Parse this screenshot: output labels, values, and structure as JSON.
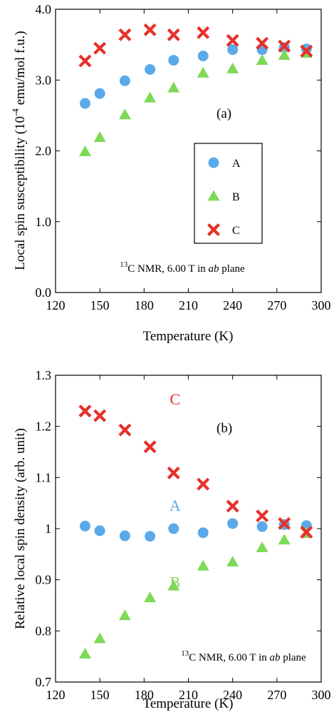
{
  "chart_data": [
    {
      "type": "scatter",
      "panel_label": "(a)",
      "xlabel": "Temperature (K)",
      "ylabel_main": "Local spin susceptibility  (10",
      "ylabel_sup": "-4",
      "ylabel_tail": " emu/mol  f.u.)",
      "xlim": [
        120,
        300
      ],
      "ylim": [
        0.0,
        4.0
      ],
      "xticks": [
        120,
        150,
        180,
        210,
        240,
        270,
        300
      ],
      "yticks": [
        0.0,
        1.0,
        2.0,
        3.0,
        4.0
      ],
      "ytick_labels": [
        "0.0",
        "1.0",
        "2.0",
        "3.0",
        "4.0"
      ],
      "annotation": {
        "sup": "13",
        "pre": "C NMR, 6.00 T in ",
        "italic": "ab",
        "post": " plane"
      },
      "legend": {
        "position": "center-right",
        "entries": [
          "A",
          "B",
          "C"
        ]
      },
      "grid": false,
      "series": [
        {
          "name": "A",
          "marker": "circle",
          "color": "#5aaaea",
          "x": [
            140,
            150,
            167,
            184,
            200,
            220,
            240,
            260,
            275,
            290
          ],
          "y": [
            2.67,
            2.81,
            2.99,
            3.15,
            3.28,
            3.34,
            3.43,
            3.43,
            3.46,
            3.44
          ]
        },
        {
          "name": "B",
          "marker": "triangle",
          "color": "#7ed957",
          "x": [
            140,
            150,
            167,
            184,
            200,
            220,
            240,
            260,
            275,
            290
          ],
          "y": [
            1.99,
            2.19,
            2.51,
            2.75,
            2.89,
            3.1,
            3.16,
            3.28,
            3.35,
            3.38
          ]
        },
        {
          "name": "C",
          "marker": "x",
          "color": "#e8302a",
          "x": [
            140,
            150,
            167,
            184,
            200,
            220,
            240,
            260,
            275,
            290
          ],
          "y": [
            3.27,
            3.45,
            3.64,
            3.71,
            3.64,
            3.67,
            3.56,
            3.52,
            3.48,
            3.41
          ]
        }
      ]
    },
    {
      "type": "scatter",
      "panel_label": "(b)",
      "xlabel": "Temperature (K)",
      "ylabel": "Relative local spin density  (arb. unit)",
      "xlim": [
        120,
        300
      ],
      "ylim": [
        0.7,
        1.3
      ],
      "xticks": [
        120,
        150,
        180,
        210,
        240,
        270,
        300
      ],
      "yticks": [
        0.7,
        0.8,
        0.9,
        1.0,
        1.1,
        1.2,
        1.3
      ],
      "ytick_labels": [
        "0.7",
        "0.8",
        "0.9",
        "1",
        "1.1",
        "1.2",
        "1.3"
      ],
      "annotation": {
        "sup": "13",
        "pre": "C NMR, 6.00 T in ",
        "italic": "ab",
        "post": " plane"
      },
      "series_labels": [
        {
          "name": "C",
          "x": 201,
          "y": 1.243
        },
        {
          "name": "A",
          "x": 201,
          "y": 1.035
        },
        {
          "name": "B",
          "x": 201,
          "y": 0.885
        }
      ],
      "grid": false,
      "series": [
        {
          "name": "A",
          "marker": "circle",
          "color": "#5aaaea",
          "x": [
            140,
            150,
            167,
            184,
            200,
            220,
            240,
            260,
            275,
            290
          ],
          "y": [
            1.005,
            0.996,
            0.986,
            0.985,
            1.0,
            0.992,
            1.01,
            1.004,
            1.008,
            1.006
          ]
        },
        {
          "name": "B",
          "marker": "triangle",
          "color": "#7ed957",
          "x": [
            140,
            150,
            167,
            184,
            200,
            220,
            240,
            260,
            275,
            290
          ],
          "y": [
            0.755,
            0.785,
            0.83,
            0.865,
            0.888,
            0.927,
            0.935,
            0.963,
            0.978,
            0.991
          ]
        },
        {
          "name": "C",
          "marker": "x",
          "color": "#e8302a",
          "x": [
            140,
            150,
            167,
            184,
            200,
            220,
            240,
            260,
            275,
            290
          ],
          "y": [
            1.23,
            1.221,
            1.193,
            1.16,
            1.109,
            1.087,
            1.044,
            1.025,
            1.01,
            0.993
          ]
        }
      ]
    }
  ]
}
